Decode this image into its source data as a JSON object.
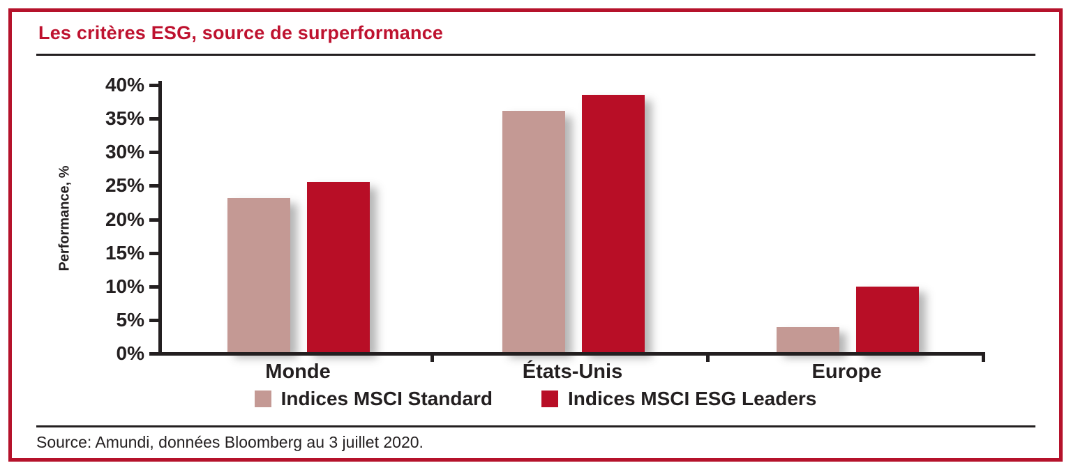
{
  "title": "Les critères ESG, source de surperformance",
  "source_note": "Source: Amundi, données Bloomberg au 3 juillet 2020.",
  "colors": {
    "brand_red": "#BE122F",
    "frame_red": "#B5122B",
    "bar_standard": "#C49994",
    "bar_esg_leaders": "#B80E26",
    "axis_dark": "#231F20"
  },
  "chart_data": {
    "type": "bar",
    "title": "Les critères ESG, source de surperformance",
    "categories": [
      "Monde",
      "États-Unis",
      "Europe"
    ],
    "series": [
      {
        "name": "Indices MSCI Standard",
        "color": "#C49994",
        "values": [
          23.0,
          35.9,
          3.7
        ]
      },
      {
        "name": "Indices MSCI ESG Leaders",
        "color": "#B80E26",
        "values": [
          25.3,
          38.3,
          9.8
        ]
      }
    ],
    "xlabel": "",
    "ylabel": "Performance, %",
    "ylim": [
      0,
      40
    ],
    "ytick_step": 5,
    "ytick_suffix": "%",
    "grid": false,
    "legend_position": "bottom"
  }
}
